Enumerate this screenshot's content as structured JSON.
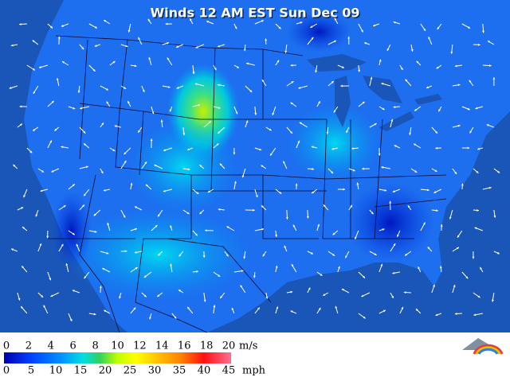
{
  "title": "Winds 12 AM EST Sun Dec 09",
  "legend": {
    "ms": {
      "ticks": [
        0,
        2,
        4,
        6,
        8,
        10,
        12,
        14,
        16,
        18,
        20
      ],
      "unit": "m/s"
    },
    "mph": {
      "ticks": [
        0,
        5,
        10,
        15,
        20,
        25,
        30,
        35,
        40,
        45
      ],
      "unit": "mph"
    }
  }
}
